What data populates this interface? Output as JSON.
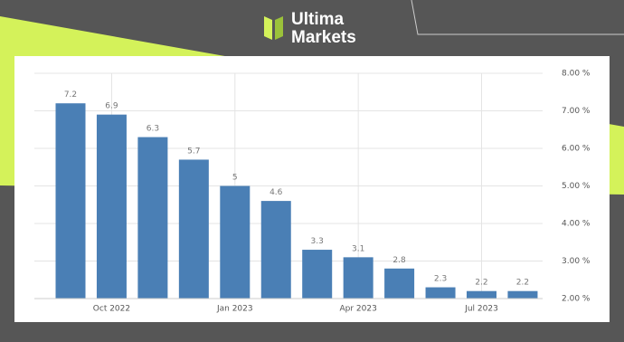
{
  "logo": {
    "line1": "Ultima",
    "line2": "Markets"
  },
  "chart_data": {
    "type": "bar",
    "categories": [
      null,
      "Oct 2022",
      null,
      null,
      "Jan 2023",
      null,
      null,
      "Apr 2023",
      null,
      null,
      "Jul 2023",
      null
    ],
    "values": [
      7.2,
      6.9,
      6.3,
      5.7,
      5,
      4.6,
      3.3,
      3.1,
      2.8,
      2.3,
      2.2,
      2.2
    ],
    "color": "#4a7fb5",
    "ylim": [
      2,
      8
    ],
    "yticks": [
      {
        "value": 2,
        "label": "2.00 %"
      },
      {
        "value": 3,
        "label": "3.00 %"
      },
      {
        "value": 4,
        "label": "4.00 %"
      },
      {
        "value": 5,
        "label": "5.00 %"
      },
      {
        "value": 6,
        "label": "6.00 %"
      },
      {
        "value": 7,
        "label": "7.00 %"
      },
      {
        "value": 8,
        "label": "8.00 %"
      }
    ],
    "grid": true,
    "y_axis_side": "right"
  }
}
